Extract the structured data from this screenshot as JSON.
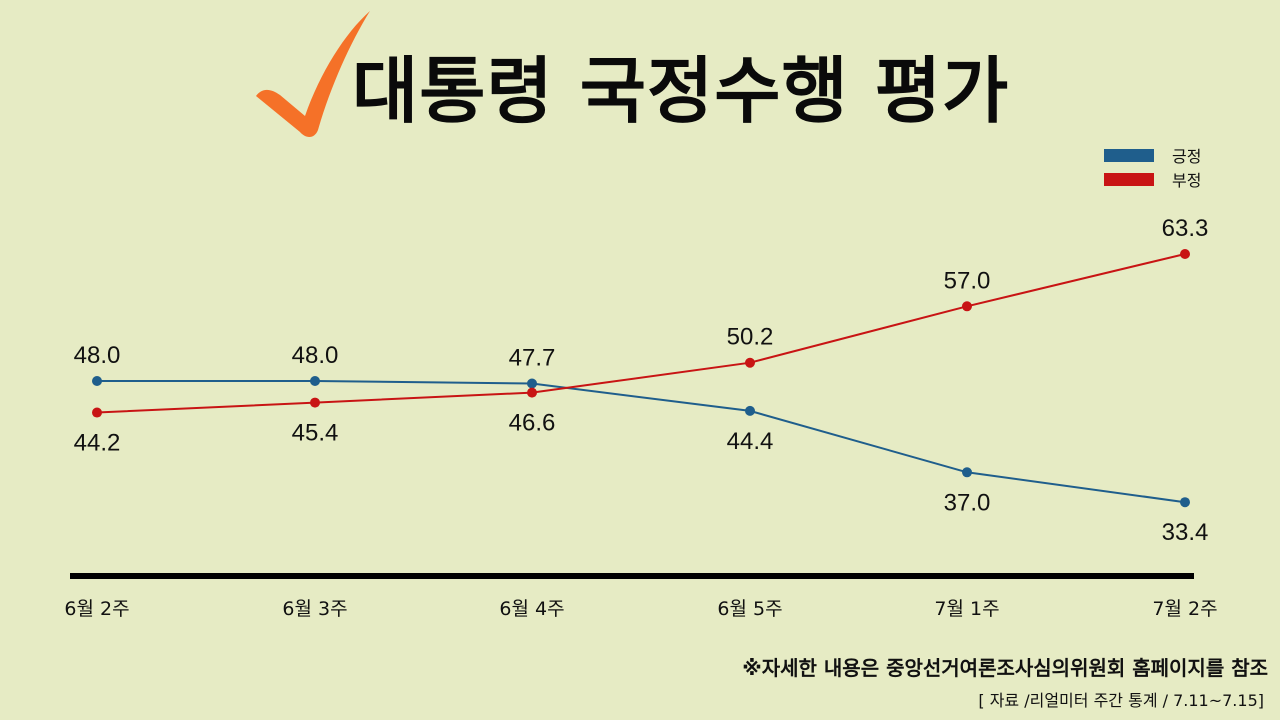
{
  "header": {
    "title": "대통령 국정수행 평가",
    "icon": "check-icon"
  },
  "legend": [
    {
      "label": "긍정",
      "color": "#1f5e8c"
    },
    {
      "label": "부정",
      "color": "#c81414"
    }
  ],
  "footer": {
    "note": "※자세한 내용은 중앙선거여론조사심의위원회 홈페이지를 참조",
    "source": "[ 자료 /리얼미터 주간 통계 / 7.11~7.15]"
  },
  "colors": {
    "background": "#e6ebc4",
    "positive": "#1f5e8c",
    "negative": "#c81414",
    "check": "#f57128",
    "axis": "#000000"
  },
  "chart_data": {
    "type": "line",
    "title": "대통령 국정수행 평가",
    "categories": [
      "6월 2주",
      "6월 3주",
      "6월 4주",
      "6월 5주",
      "7월 1주",
      "7월 2주"
    ],
    "series": [
      {
        "name": "긍정",
        "color": "#1f5e8c",
        "values": [
          48.0,
          48.0,
          47.7,
          44.4,
          37.0,
          33.4
        ]
      },
      {
        "name": "부정",
        "color": "#c81414",
        "values": [
          44.2,
          45.4,
          46.6,
          50.2,
          57.0,
          63.3
        ]
      }
    ],
    "xlabel": "",
    "ylabel": "",
    "grid": false,
    "legend_position": "top-right",
    "data_labels": true
  }
}
